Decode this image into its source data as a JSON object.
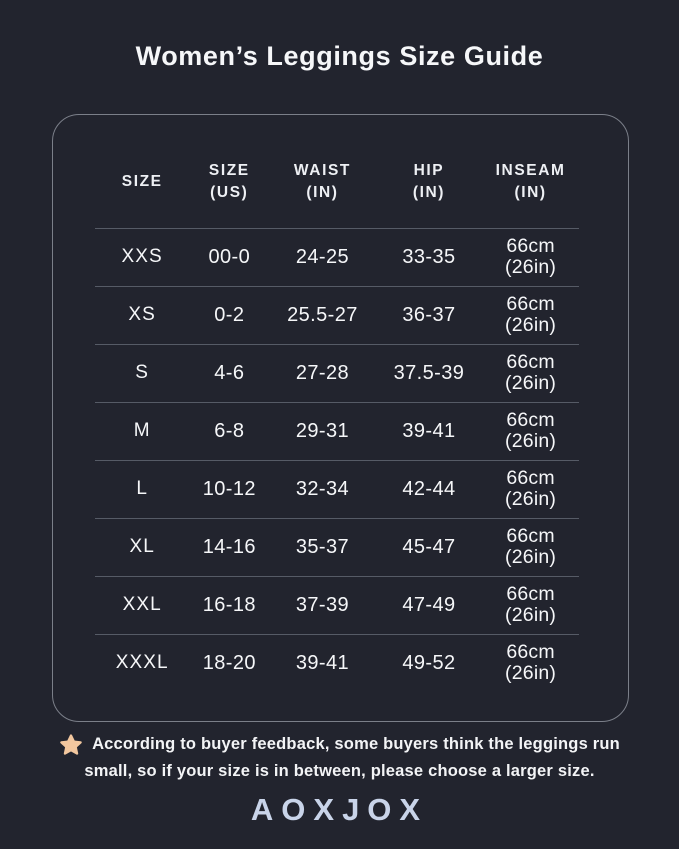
{
  "title": "Women’s Leggings Size Guide",
  "table": {
    "columns": [
      {
        "key": "size",
        "label": "SIZE"
      },
      {
        "key": "size_us",
        "label": "SIZE\n(US)"
      },
      {
        "key": "waist",
        "label": "WAIST\n(IN)"
      },
      {
        "key": "hip",
        "label": "HIP\n(IN)"
      },
      {
        "key": "inseam",
        "label": "INSEAM\n(IN)"
      }
    ],
    "rows": [
      {
        "size": "XXS",
        "size_us": "00-0",
        "waist": "24-25",
        "hip": "33-35",
        "inseam": "66cm\n(26in)"
      },
      {
        "size": "XS",
        "size_us": "0-2",
        "waist": "25.5-27",
        "hip": "36-37",
        "inseam": "66cm\n(26in)"
      },
      {
        "size": "S",
        "size_us": "4-6",
        "waist": "27-28",
        "hip": "37.5-39",
        "inseam": "66cm\n(26in)"
      },
      {
        "size": "M",
        "size_us": "6-8",
        "waist": "29-31",
        "hip": "39-41",
        "inseam": "66cm\n(26in)"
      },
      {
        "size": "L",
        "size_us": "10-12",
        "waist": "32-34",
        "hip": "42-44",
        "inseam": "66cm\n(26in)"
      },
      {
        "size": "XL",
        "size_us": "14-16",
        "waist": "35-37",
        "hip": "45-47",
        "inseam": "66cm\n(26in)"
      },
      {
        "size": "XXL",
        "size_us": "16-18",
        "waist": "37-39",
        "hip": "47-49",
        "inseam": "66cm\n(26in)"
      },
      {
        "size": "XXXL",
        "size_us": "18-20",
        "waist": "39-41",
        "hip": "49-52",
        "inseam": "66cm\n(26in)"
      }
    ]
  },
  "note": {
    "line1": "According to buyer feedback, some buyers think the leggings run",
    "line2": "small, so if your size is in between, please choose a larger size."
  },
  "brand": "AOXJOX",
  "colors": {
    "background": "#22242e",
    "card_border": "#7b7f89",
    "divider": "#565b66",
    "text": "#f6f7f9",
    "star": "#f2c79f",
    "logo": "#c9d4e9"
  },
  "chart_data": {
    "type": "table",
    "title": "Women’s Leggings Size Guide",
    "columns": [
      "SIZE",
      "SIZE (US)",
      "WAIST (IN)",
      "HIP (IN)",
      "INSEAM (IN)"
    ],
    "rows": [
      [
        "XXS",
        "00-0",
        "24-25",
        "33-35",
        "66cm (26in)"
      ],
      [
        "XS",
        "0-2",
        "25.5-27",
        "36-37",
        "66cm (26in)"
      ],
      [
        "S",
        "4-6",
        "27-28",
        "37.5-39",
        "66cm (26in)"
      ],
      [
        "M",
        "6-8",
        "29-31",
        "39-41",
        "66cm (26in)"
      ],
      [
        "L",
        "10-12",
        "32-34",
        "42-44",
        "66cm (26in)"
      ],
      [
        "XL",
        "14-16",
        "35-37",
        "45-47",
        "66cm (26in)"
      ],
      [
        "XXL",
        "16-18",
        "37-39",
        "47-49",
        "66cm (26in)"
      ],
      [
        "XXXL",
        "18-20",
        "39-41",
        "49-52",
        "66cm (26in)"
      ]
    ],
    "note": "According to buyer feedback, some buyers think the leggings run small, so if your size is in between, please choose a larger size.",
    "brand": "AOXJOX"
  }
}
